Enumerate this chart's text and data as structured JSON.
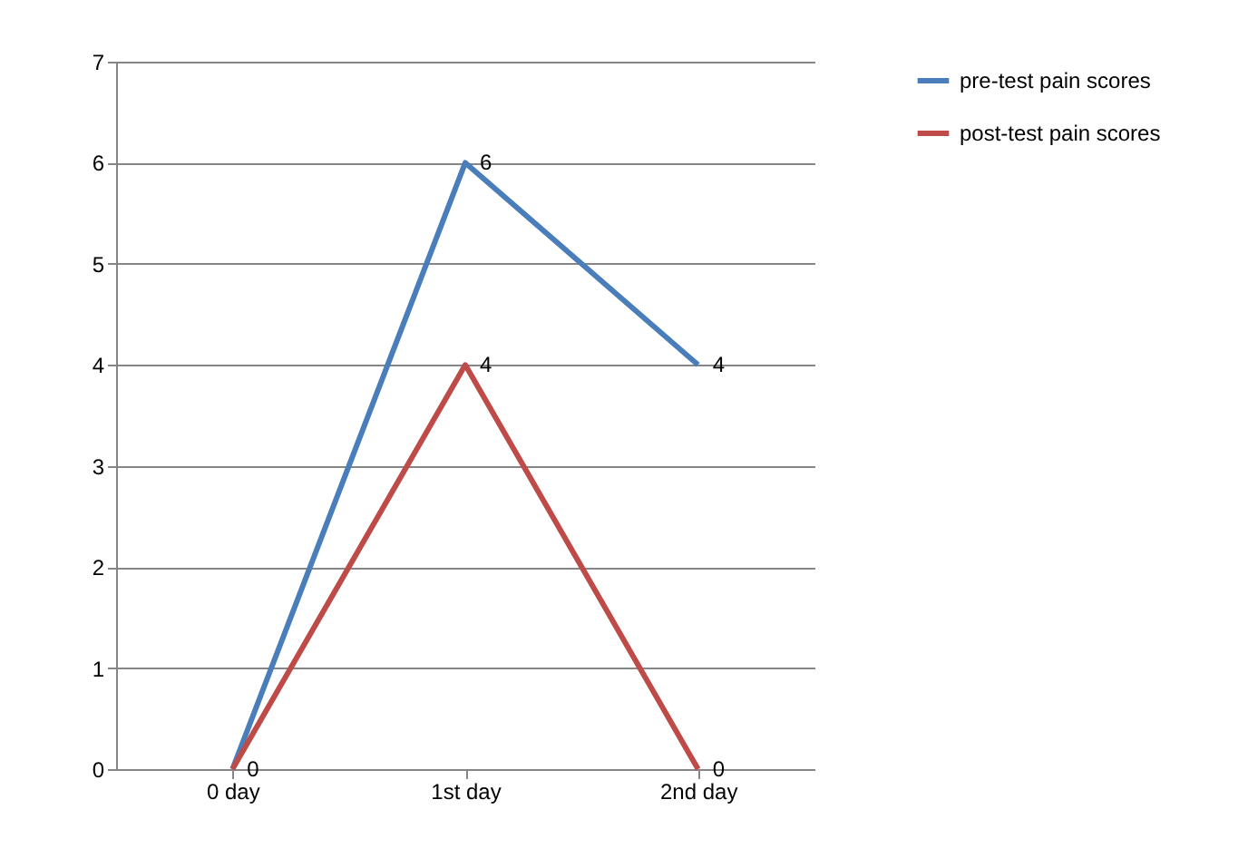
{
  "chart_data": {
    "type": "line",
    "categories": [
      "0 day",
      "1st day",
      "2nd day"
    ],
    "series": [
      {
        "name": "pre-test pain scores",
        "color": "#4a7ebb",
        "values": [
          0,
          6,
          4
        ],
        "value_labels": [
          "0",
          "6",
          "4"
        ]
      },
      {
        "name": "post-test pain scores",
        "color": "#be4b48",
        "values": [
          0,
          4,
          0
        ],
        "value_labels": [
          null,
          "4",
          "0"
        ]
      }
    ],
    "ylim": [
      0,
      7
    ],
    "yticks": [
      0,
      1,
      2,
      3,
      4,
      5,
      6,
      7
    ],
    "grid": "y",
    "legend": "right",
    "marker": "none",
    "line_style": "solid"
  }
}
